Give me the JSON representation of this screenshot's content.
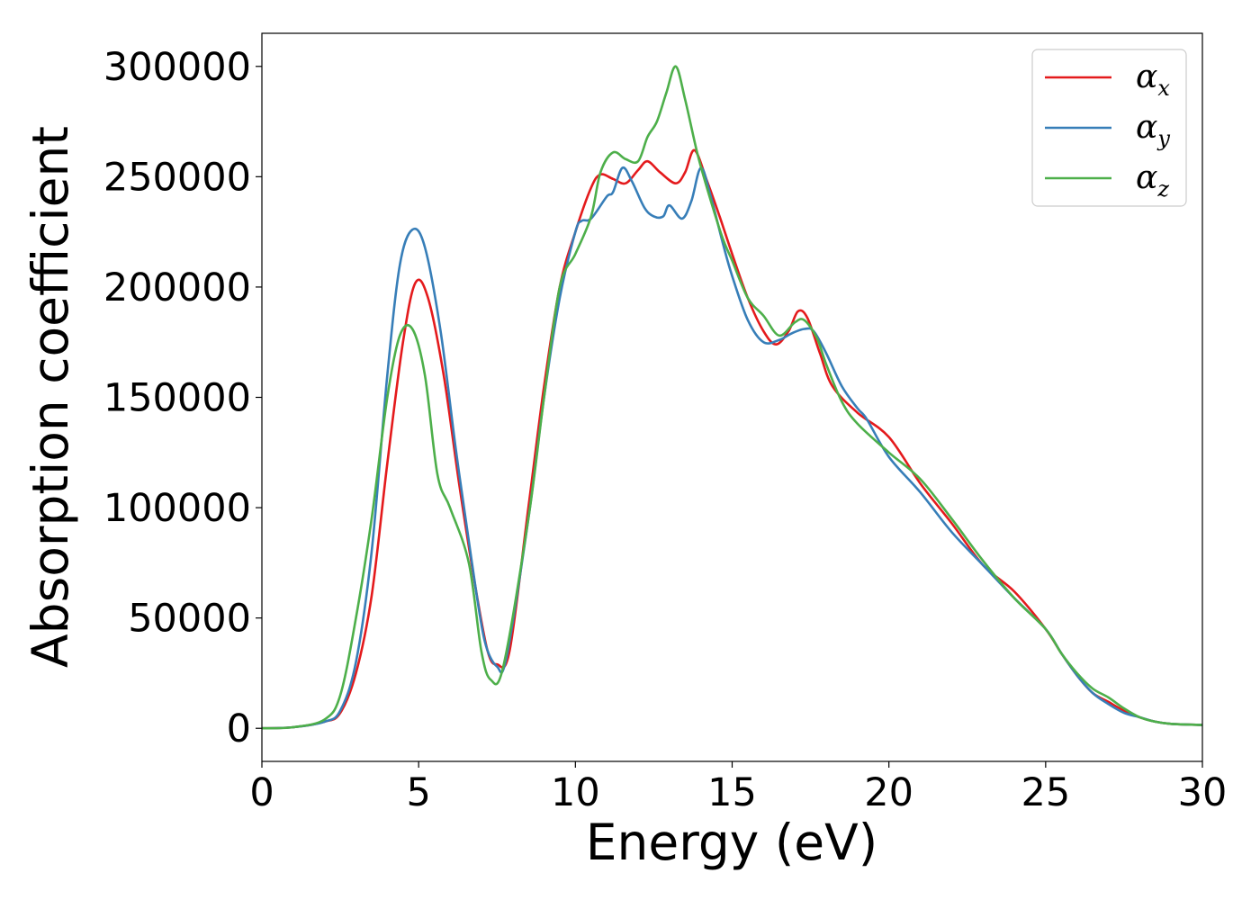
{
  "chart_data": {
    "type": "line",
    "xlabel": "Energy (eV)",
    "ylabel": "Absorption coefficient",
    "xlim": [
      0,
      30
    ],
    "ylim": [
      -15000,
      315000
    ],
    "xticks": [
      0,
      5,
      10,
      15,
      20,
      25,
      30
    ],
    "yticks": [
      0,
      50000,
      100000,
      150000,
      200000,
      250000,
      300000
    ],
    "xtick_labels": [
      "0",
      "5",
      "10",
      "15",
      "20",
      "25",
      "30"
    ],
    "ytick_labels": [
      "0",
      "50000",
      "100000",
      "150000",
      "200000",
      "250000",
      "300000"
    ],
    "grid": false,
    "legend_position": "top-right",
    "series": [
      {
        "name": "α_x",
        "symbol": "α",
        "subscript": "x",
        "color": "#e41a1c",
        "x": [
          0,
          1,
          2,
          2.5,
          3,
          3.5,
          4,
          4.5,
          4.9,
          5.3,
          5.8,
          6.3,
          6.8,
          7.2,
          7.5,
          7.9,
          8.5,
          9,
          9.5,
          10,
          10.5,
          10.8,
          11.2,
          11.6,
          12,
          12.3,
          12.7,
          13.2,
          13.5,
          13.8,
          14.2,
          14.6,
          15,
          15.5,
          16,
          16.4,
          16.8,
          17.1,
          17.4,
          17.8,
          18.2,
          19,
          20,
          21,
          22,
          23,
          24,
          25,
          25.5,
          26,
          26.5,
          27,
          27.5,
          28,
          28.5,
          29,
          30
        ],
        "y": [
          0,
          500,
          3000,
          7000,
          25000,
          60000,
          120000,
          175000,
          202000,
          195000,
          160000,
          110000,
          65000,
          35000,
          29000,
          35000,
          100000,
          155000,
          200000,
          225000,
          245000,
          251000,
          249000,
          247000,
          253000,
          257000,
          252000,
          247000,
          252000,
          262000,
          248000,
          232000,
          215000,
          195000,
          180000,
          174000,
          180000,
          189000,
          186000,
          170000,
          155000,
          143000,
          132000,
          111000,
          93000,
          74000,
          62000,
          45000,
          34000,
          24000,
          16000,
          12000,
          8000,
          5000,
          3000,
          2000,
          1500
        ]
      },
      {
        "name": "α_y",
        "symbol": "α",
        "subscript": "y",
        "color": "#377eb8",
        "x": [
          0,
          1,
          2,
          2.5,
          3,
          3.5,
          4,
          4.4,
          4.8,
          5.2,
          5.7,
          6.2,
          6.7,
          7.1,
          7.5,
          7.8,
          8.5,
          9,
          9.5,
          10,
          10.2,
          10.5,
          11,
          11.2,
          11.5,
          11.8,
          12.2,
          12.5,
          12.8,
          13,
          13.4,
          13.7,
          14,
          14.3,
          14.7,
          15,
          15.5,
          16,
          16.5,
          16.9,
          17.3,
          17.6,
          18,
          18.5,
          19,
          19.3,
          20,
          21,
          22,
          23,
          24,
          25,
          25.5,
          26,
          26.5,
          27,
          27.5,
          28,
          28.5,
          29,
          30
        ],
        "y": [
          0,
          500,
          3000,
          8000,
          30000,
          80000,
          160000,
          210000,
          226000,
          218000,
          180000,
          125000,
          75000,
          40000,
          28000,
          32000,
          95000,
          150000,
          195000,
          225000,
          230000,
          231000,
          241000,
          243000,
          254000,
          248000,
          236000,
          232000,
          232000,
          237000,
          231000,
          239000,
          254000,
          242000,
          220000,
          205000,
          185000,
          175000,
          176000,
          179000,
          181000,
          180000,
          170000,
          155000,
          145000,
          140000,
          123000,
          107000,
          89000,
          74000,
          59000,
          45000,
          34000,
          24000,
          16000,
          11000,
          7000,
          5000,
          3000,
          2000,
          1500
        ]
      },
      {
        "name": "α_z",
        "symbol": "α",
        "subscript": "z",
        "color": "#4daf4a",
        "x": [
          0,
          1,
          2,
          2.5,
          3,
          3.5,
          4,
          4.4,
          4.8,
          5.2,
          5.6,
          6,
          6.6,
          7,
          7.3,
          7.7,
          8.5,
          9,
          9.5,
          10,
          10.5,
          10.8,
          11.2,
          11.6,
          12,
          12.3,
          12.6,
          12.9,
          13.2,
          13.5,
          13.9,
          14.3,
          14.7,
          15,
          15.5,
          16,
          16.5,
          17,
          17.3,
          17.7,
          18,
          18.5,
          19,
          20,
          21,
          22,
          23,
          24,
          25,
          25.5,
          26,
          26.5,
          27,
          27.5,
          28,
          28.5,
          29,
          30
        ],
        "y": [
          0,
          500,
          4000,
          15000,
          50000,
          95000,
          150000,
          178000,
          181000,
          160000,
          115000,
          100000,
          75000,
          35000,
          22000,
          28000,
          95000,
          150000,
          200000,
          215000,
          232000,
          252000,
          261000,
          258000,
          257000,
          268000,
          275000,
          288000,
          300000,
          285000,
          260000,
          240000,
          222000,
          212000,
          195000,
          187000,
          178000,
          184000,
          185000,
          177000,
          165000,
          148000,
          138000,
          125000,
          113000,
          95000,
          76000,
          59000,
          45000,
          34000,
          25000,
          18000,
          14000,
          9000,
          5000,
          3000,
          2000,
          1500
        ]
      }
    ]
  }
}
